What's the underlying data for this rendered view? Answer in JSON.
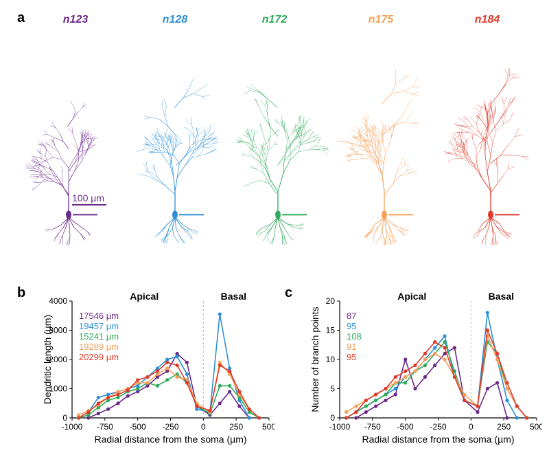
{
  "panels": {
    "a": "a",
    "b": "b",
    "c": "c"
  },
  "neurons": [
    {
      "id": "n123",
      "color": "#6b2a8a",
      "length_label": "17546 µm",
      "branch_label": "87"
    },
    {
      "id": "n128",
      "color": "#2a8fd6",
      "length_label": "19457 µm",
      "branch_label": "95"
    },
    {
      "id": "n172",
      "color": "#2faa5a",
      "length_label": "15241 µm",
      "branch_label": "108"
    },
    {
      "id": "n175",
      "color": "#f5a05a",
      "length_label": "19289 µm",
      "branch_label": "91"
    },
    {
      "id": "n184",
      "color": "#e03a2a",
      "length_label": "20299 µm",
      "branch_label": "95"
    }
  ],
  "scalebar": {
    "label": "100 µm",
    "color": "#6b2a8a"
  },
  "chart_b": {
    "type": "line",
    "apical_label": "Apical",
    "basal_label": "Basal",
    "ylabel": "Dendritic length (µm)",
    "xlabel": "Radial distance from the soma (µm)",
    "xlim": [
      -1000,
      500
    ],
    "ylim": [
      0,
      4000
    ],
    "ytick_step": 1000,
    "xtick_step": 250,
    "divider_x": 0,
    "grid_color": "#bbbbbb",
    "font_size_label": 14,
    "background_color": "#ffffff",
    "series": [
      {
        "color": "#6b2a8a",
        "x": [
          -875,
          -800,
          -725,
          -650,
          -575,
          -500,
          -425,
          -350,
          -275,
          -200,
          -125,
          -50,
          50,
          125,
          200,
          275,
          350
        ],
        "y": [
          0,
          150,
          300,
          500,
          750,
          900,
          1100,
          1400,
          1600,
          2200,
          1900,
          400,
          100,
          500,
          900,
          400,
          0
        ]
      },
      {
        "color": "#2a8fd6",
        "x": [
          -950,
          -875,
          -800,
          -725,
          -650,
          -575,
          -500,
          -425,
          -350,
          -275,
          -200,
          -125,
          -50,
          50,
          125,
          200,
          275,
          350
        ],
        "y": [
          0,
          200,
          700,
          800,
          900,
          1000,
          1100,
          1400,
          1700,
          2000,
          2100,
          1500,
          300,
          200,
          3550,
          1700,
          600,
          0
        ]
      },
      {
        "color": "#2faa5a",
        "x": [
          -950,
          -875,
          -800,
          -725,
          -650,
          -575,
          -500,
          -425,
          -350,
          -275,
          -200,
          -125,
          -50,
          50,
          125,
          200,
          275,
          350,
          425
        ],
        "y": [
          0,
          100,
          350,
          600,
          700,
          900,
          1000,
          1200,
          1100,
          1300,
          1500,
          1200,
          400,
          150,
          1100,
          1100,
          700,
          200,
          0
        ]
      },
      {
        "color": "#f5a05a",
        "x": [
          -950,
          -875,
          -800,
          -725,
          -650,
          -575,
          -500,
          -425,
          -350,
          -275,
          -200,
          -125,
          -50,
          50,
          125,
          200,
          275,
          350,
          425
        ],
        "y": [
          100,
          250,
          450,
          700,
          900,
          1000,
          1200,
          1200,
          1500,
          1700,
          1400,
          1300,
          500,
          200,
          1900,
          1500,
          800,
          300,
          0
        ]
      },
      {
        "color": "#e03a2a",
        "x": [
          -950,
          -875,
          -800,
          -725,
          -650,
          -575,
          -500,
          -425,
          -350,
          -275,
          -200,
          -125,
          -50,
          50,
          125,
          200,
          275,
          350,
          425
        ],
        "y": [
          0,
          200,
          500,
          700,
          800,
          950,
          1300,
          1400,
          1600,
          1900,
          1800,
          1200,
          400,
          250,
          1800,
          1600,
          900,
          300,
          0
        ]
      }
    ]
  },
  "chart_c": {
    "type": "line",
    "apical_label": "Apical",
    "basal_label": "Basal",
    "ylabel": "Number of branch points",
    "xlabel": "Radial distance from the soma (µm)",
    "xlim": [
      -1000,
      500
    ],
    "ylim": [
      0,
      20
    ],
    "ytick_step": 5,
    "xtick_step": 250,
    "divider_x": 0,
    "grid_color": "#bbbbbb",
    "font_size_label": 14,
    "background_color": "#ffffff",
    "series": [
      {
        "color": "#6b2a8a",
        "x": [
          -875,
          -800,
          -725,
          -650,
          -575,
          -500,
          -425,
          -350,
          -275,
          -200,
          -125,
          -50,
          50,
          125,
          200,
          275
        ],
        "y": [
          0,
          1,
          2,
          3,
          4,
          10,
          5,
          7,
          9,
          11,
          12,
          3,
          1,
          5,
          6,
          0
        ]
      },
      {
        "color": "#2a8fd6",
        "x": [
          -950,
          -875,
          -800,
          -725,
          -650,
          -575,
          -500,
          -425,
          -350,
          -275,
          -200,
          -125,
          -50,
          50,
          125,
          200,
          275,
          350
        ],
        "y": [
          0,
          1,
          2,
          3,
          4,
          5,
          7,
          8,
          10,
          12,
          14,
          7,
          3,
          2,
          18,
          10,
          3,
          0
        ]
      },
      {
        "color": "#2faa5a",
        "x": [
          -950,
          -875,
          -800,
          -725,
          -650,
          -575,
          -500,
          -425,
          -350,
          -275,
          -200,
          -125,
          -50,
          50,
          125,
          200,
          275,
          350,
          425
        ],
        "y": [
          0,
          1,
          2,
          3,
          4,
          6,
          6,
          8,
          9,
          11,
          13,
          8,
          3,
          2,
          13,
          11,
          5,
          2,
          0
        ]
      },
      {
        "color": "#f5a05a",
        "x": [
          -950,
          -875,
          -800,
          -725,
          -650,
          -575,
          -500,
          -425,
          -350,
          -275,
          -200,
          -125,
          -50,
          50,
          125,
          200,
          275,
          350,
          425
        ],
        "y": [
          1,
          2,
          3,
          4,
          5,
          6,
          7,
          8,
          10,
          11,
          10,
          7,
          4,
          2,
          14,
          10,
          5,
          2,
          0
        ]
      },
      {
        "color": "#e03a2a",
        "x": [
          -950,
          -875,
          -800,
          -725,
          -650,
          -575,
          -500,
          -425,
          -350,
          -275,
          -200,
          -125,
          -50,
          50,
          125,
          200,
          275,
          350,
          425
        ],
        "y": [
          0,
          1,
          3,
          4,
          5,
          7,
          8,
          9,
          11,
          13,
          12,
          7,
          3,
          2,
          15,
          11,
          6,
          2,
          0
        ]
      }
    ]
  }
}
